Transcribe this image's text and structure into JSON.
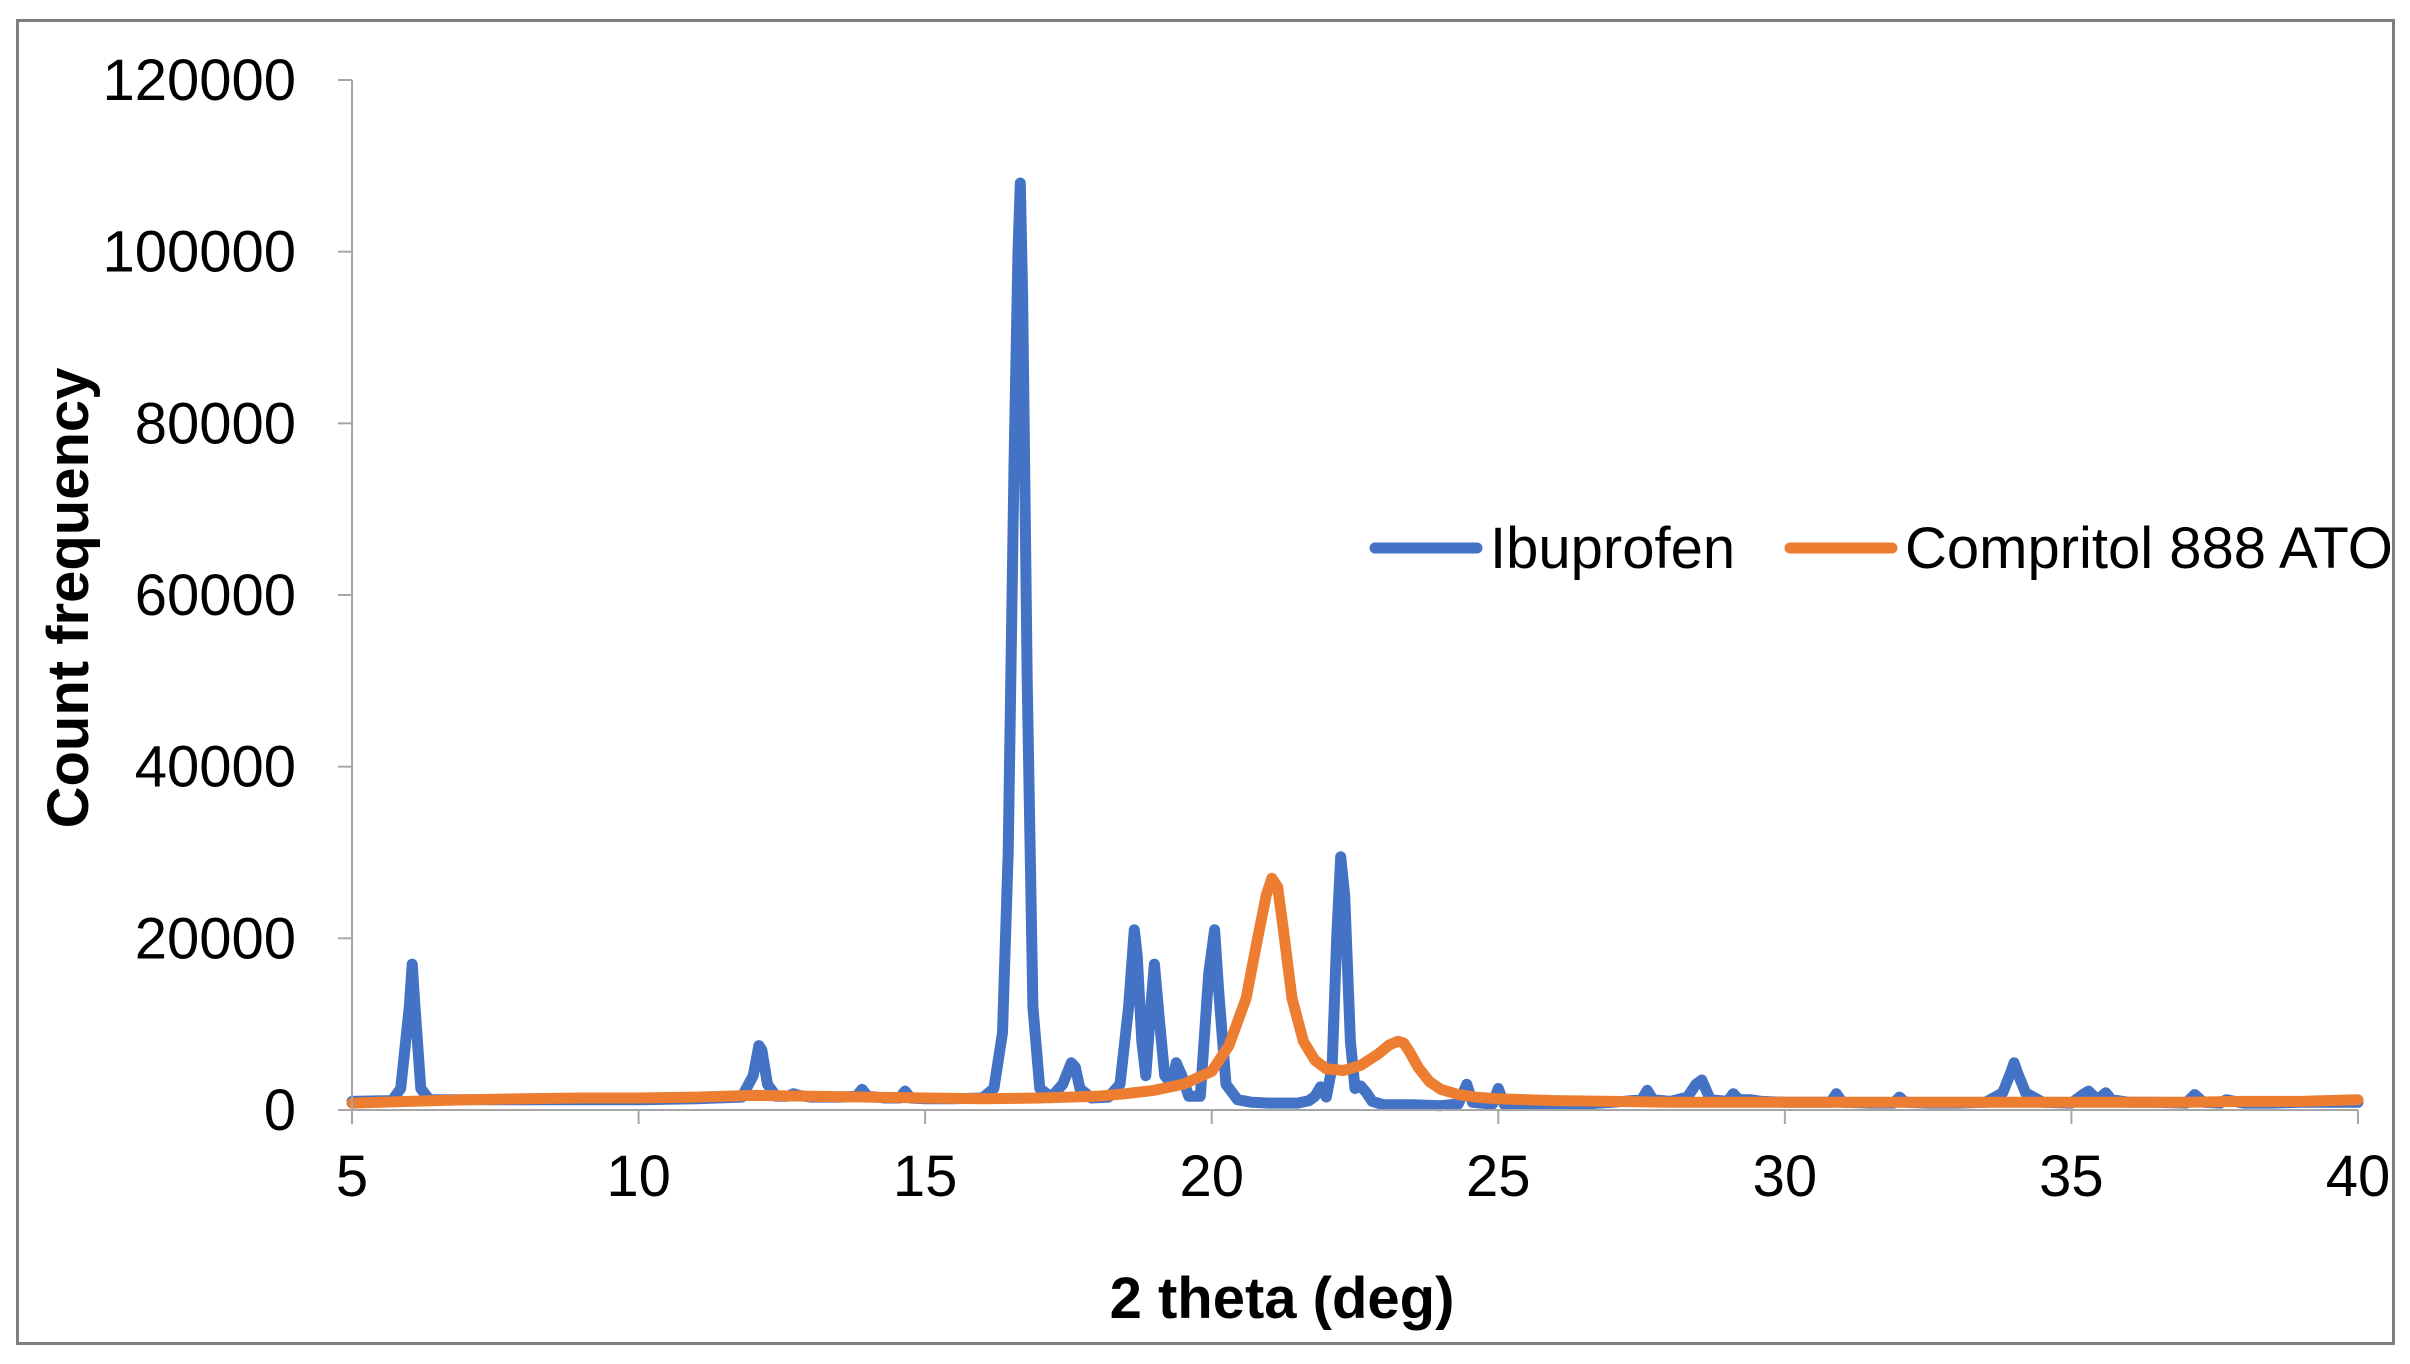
{
  "chart_data": {
    "type": "line",
    "title": "",
    "xlabel": "2 theta (deg)",
    "ylabel": "Count frequency",
    "xlim": [
      5,
      40
    ],
    "ylim": [
      0,
      120000
    ],
    "xticks": [
      5,
      10,
      15,
      20,
      25,
      30,
      35,
      40
    ],
    "yticks": [
      0,
      20000,
      40000,
      60000,
      80000,
      100000,
      120000
    ],
    "grid": false,
    "legend_position": "right",
    "series": [
      {
        "name": "Ibuprofen",
        "color": "#4472C4",
        "x": [
          5,
          5.7,
          5.85,
          6.0,
          6.05,
          6.1,
          6.2,
          6.35,
          7,
          8,
          9,
          10,
          11,
          11.8,
          12.0,
          12.1,
          12.15,
          12.25,
          12.4,
          12.6,
          12.7,
          12.8,
          13.0,
          13.5,
          13.8,
          13.9,
          14.0,
          14.3,
          14.55,
          14.65,
          14.75,
          15.0,
          15.5,
          16.0,
          16.2,
          16.35,
          16.45,
          16.55,
          16.62,
          16.66,
          16.7,
          16.78,
          16.88,
          17.0,
          17.2,
          17.4,
          17.55,
          17.62,
          17.7,
          17.9,
          18.2,
          18.4,
          18.55,
          18.65,
          18.7,
          18.78,
          18.85,
          18.95,
          19.0,
          19.08,
          19.18,
          19.3,
          19.38,
          19.48,
          19.6,
          19.8,
          19.95,
          20.05,
          20.12,
          20.25,
          20.45,
          20.7,
          21.0,
          21.3,
          21.5,
          21.7,
          21.8,
          21.9,
          22.0,
          22.1,
          22.18,
          22.25,
          22.32,
          22.42,
          22.5,
          22.6,
          22.7,
          22.8,
          23.0,
          23.5,
          24.0,
          24.3,
          24.45,
          24.55,
          24.7,
          24.9,
          25.0,
          25.1,
          25.3,
          26.0,
          26.5,
          27.0,
          27.5,
          27.6,
          27.7,
          28.0,
          28.3,
          28.45,
          28.55,
          28.7,
          29.0,
          29.1,
          29.2,
          29.4,
          29.6,
          30.0,
          30.5,
          30.8,
          30.9,
          31.0,
          31.5,
          31.9,
          32.0,
          32.1,
          32.5,
          33.0,
          33.5,
          33.8,
          33.95,
          34.0,
          34.05,
          34.2,
          34.5,
          35.0,
          35.2,
          35.3,
          35.45,
          35.6,
          35.7,
          36.0,
          36.5,
          37.0,
          37.15,
          37.3,
          37.6,
          37.7,
          38.0,
          38.5,
          39.0,
          39.5,
          40
        ],
        "y": [
          1000,
          1100,
          2500,
          12000,
          17000,
          12000,
          2500,
          1200,
          1200,
          1200,
          1200,
          1200,
          1300,
          1500,
          4000,
          7500,
          7000,
          3000,
          1600,
          1600,
          1900,
          1700,
          1500,
          1500,
          1600,
          2400,
          1600,
          1400,
          1400,
          2200,
          1400,
          1300,
          1300,
          1400,
          2500,
          9000,
          30000,
          75000,
          100000,
          108000,
          95000,
          50000,
          12000,
          2500,
          1500,
          3000,
          5500,
          5000,
          2500,
          1400,
          1500,
          3000,
          12000,
          21000,
          18000,
          8000,
          4000,
          13000,
          17000,
          11000,
          4000,
          3000,
          5500,
          4000,
          1600,
          1600,
          16000,
          21000,
          14000,
          3000,
          1200,
          900,
          800,
          800,
          800,
          1100,
          1600,
          2700,
          1500,
          5000,
          20000,
          29500,
          25000,
          8000,
          2500,
          2800,
          2000,
          1000,
          600,
          600,
          500,
          700,
          3000,
          900,
          800,
          700,
          2500,
          700,
          700,
          700,
          700,
          900,
          1200,
          2300,
          1200,
          1000,
          1500,
          3000,
          3500,
          1200,
          1000,
          1900,
          1200,
          1200,
          1000,
          900,
          900,
          900,
          1900,
          900,
          800,
          800,
          1500,
          900,
          800,
          800,
          900,
          2000,
          4500,
          5500,
          4500,
          2000,
          900,
          800,
          1800,
          2200,
          1200,
          2000,
          1200,
          900,
          900,
          800,
          1800,
          900,
          800,
          1200,
          800,
          800,
          900,
          900,
          900
        ]
      },
      {
        "name": "Compritol 888 ATO",
        "color": "#ED7D31",
        "x": [
          5,
          6,
          7,
          8,
          9,
          10,
          11,
          12,
          13,
          14,
          15,
          16,
          17,
          18,
          18.5,
          19,
          19.5,
          20,
          20.3,
          20.6,
          20.8,
          20.95,
          21.05,
          21.15,
          21.25,
          21.4,
          21.6,
          21.8,
          22.0,
          22.3,
          22.6,
          22.9,
          23.1,
          23.25,
          23.35,
          23.45,
          23.6,
          23.8,
          24.0,
          24.3,
          24.6,
          25.0,
          25.5,
          26,
          27,
          28,
          29,
          30,
          31,
          32,
          33,
          34,
          35,
          36,
          37,
          38,
          39,
          40
        ],
        "y": [
          800,
          1000,
          1200,
          1300,
          1400,
          1400,
          1500,
          1700,
          1600,
          1500,
          1400,
          1300,
          1400,
          1600,
          1900,
          2300,
          3000,
          4500,
          7500,
          13000,
          20000,
          25000,
          27000,
          26000,
          21000,
          13000,
          8000,
          5800,
          4800,
          4600,
          5200,
          6500,
          7600,
          8000,
          7800,
          6800,
          5000,
          3300,
          2400,
          1800,
          1500,
          1300,
          1200,
          1100,
          1000,
          900,
          900,
          900,
          900,
          900,
          900,
          900,
          900,
          900,
          900,
          1000,
          1000,
          1200
        ]
      }
    ]
  }
}
